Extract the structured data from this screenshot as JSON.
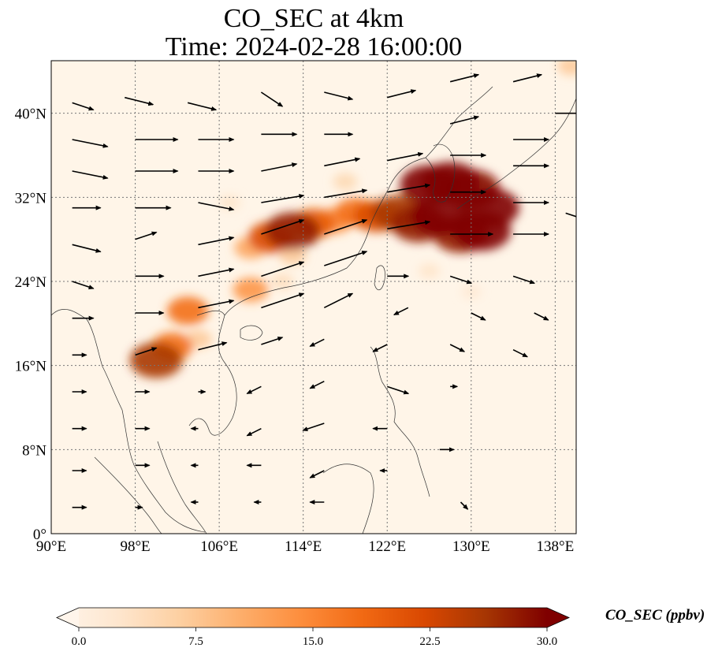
{
  "title_line1": "CO_SEC at 4km",
  "title_line2": "Time: 2024-02-28 16:00:00",
  "map": {
    "lon_range": [
      90,
      140
    ],
    "lat_range": [
      0,
      45
    ],
    "lon_ticks": [
      "90°E",
      "98°E",
      "106°E",
      "114°E",
      "122°E",
      "130°E",
      "138°E"
    ],
    "lat_ticks": [
      "0°",
      "8°N",
      "16°N",
      "24°N",
      "32°N",
      "40°N"
    ],
    "gridlines": true,
    "background_color": "#fff5e8"
  },
  "colorbar": {
    "title": "CO_SEC (ppbv)",
    "ticks": [
      "0.0",
      "7.5",
      "15.0",
      "22.5",
      "30.0"
    ],
    "min": 0,
    "max": 30,
    "extend": "both",
    "colormap": [
      "#fff5eb",
      "#fee6ce",
      "#fdd0a2",
      "#fdae6b",
      "#fd8d3c",
      "#f16913",
      "#d94801",
      "#a63603",
      "#7f0000"
    ]
  },
  "chart_data": {
    "type": "heatmap",
    "variable": "CO_SEC",
    "units": "ppbv",
    "plume_cells": [
      {
        "lon": 126,
        "lat": 33.2,
        "value": 30
      },
      {
        "lon": 128,
        "lat": 33.5,
        "value": 30
      },
      {
        "lon": 130,
        "lat": 32.8,
        "value": 29
      },
      {
        "lon": 131.8,
        "lat": 31,
        "value": 30
      },
      {
        "lon": 131,
        "lat": 28.8,
        "value": 30
      },
      {
        "lon": 129,
        "lat": 28.5,
        "value": 28
      },
      {
        "lon": 127,
        "lat": 30.2,
        "value": 30
      },
      {
        "lon": 125,
        "lat": 29.5,
        "value": 28
      },
      {
        "lon": 123,
        "lat": 30.5,
        "value": 26
      },
      {
        "lon": 121,
        "lat": 30.2,
        "value": 22
      },
      {
        "lon": 119,
        "lat": 30.6,
        "value": 18
      },
      {
        "lon": 117,
        "lat": 29.8,
        "value": 15
      },
      {
        "lon": 115,
        "lat": 29.5,
        "value": 20
      },
      {
        "lon": 113,
        "lat": 28.8,
        "value": 28
      },
      {
        "lon": 111,
        "lat": 28.2,
        "value": 22
      },
      {
        "lon": 109,
        "lat": 27.2,
        "value": 12
      },
      {
        "lon": 113,
        "lat": 26.5,
        "value": 8
      },
      {
        "lon": 118,
        "lat": 33.5,
        "value": 6
      },
      {
        "lon": 109,
        "lat": 23.2,
        "value": 14
      },
      {
        "lon": 103,
        "lat": 21.2,
        "value": 18
      },
      {
        "lon": 101.5,
        "lat": 17.8,
        "value": 18
      },
      {
        "lon": 100,
        "lat": 16.5,
        "value": 26
      },
      {
        "lon": 104,
        "lat": 18.5,
        "value": 8
      },
      {
        "lon": 112,
        "lat": 24,
        "value": 5
      },
      {
        "lon": 126,
        "lat": 25,
        "value": 4
      },
      {
        "lon": 130,
        "lat": 23,
        "value": 3
      },
      {
        "lon": 107,
        "lat": 31.5,
        "value": 4
      },
      {
        "lon": 139.5,
        "lat": 44.5,
        "value": 8
      }
    ],
    "wind_vectors": [
      {
        "lon": 92,
        "lat": 41,
        "u": 3,
        "v": -1
      },
      {
        "lon": 97,
        "lat": 41.5,
        "u": 4,
        "v": -1
      },
      {
        "lon": 103,
        "lat": 41,
        "u": 4,
        "v": -1
      },
      {
        "lon": 110,
        "lat": 42,
        "u": 3,
        "v": -2
      },
      {
        "lon": 116,
        "lat": 42,
        "u": 4,
        "v": -1
      },
      {
        "lon": 122,
        "lat": 41.5,
        "u": 4,
        "v": 1
      },
      {
        "lon": 128,
        "lat": 43,
        "u": 4,
        "v": 1
      },
      {
        "lon": 134,
        "lat": 43,
        "u": 4,
        "v": 1
      },
      {
        "lon": 138,
        "lat": 40,
        "u": 4,
        "v": 0
      },
      {
        "lon": 92,
        "lat": 37.5,
        "u": 5,
        "v": -1
      },
      {
        "lon": 98,
        "lat": 37.5,
        "u": 6,
        "v": 0
      },
      {
        "lon": 104,
        "lat": 37.5,
        "u": 5,
        "v": 0
      },
      {
        "lon": 110,
        "lat": 38,
        "u": 5,
        "v": 0
      },
      {
        "lon": 116,
        "lat": 38,
        "u": 4,
        "v": 0
      },
      {
        "lon": 128,
        "lat": 39,
        "u": 4,
        "v": 1
      },
      {
        "lon": 134,
        "lat": 37.5,
        "u": 5,
        "v": 0
      },
      {
        "lon": 92,
        "lat": 34.5,
        "u": 5,
        "v": -1
      },
      {
        "lon": 98,
        "lat": 34.5,
        "u": 6,
        "v": 0
      },
      {
        "lon": 104,
        "lat": 34.5,
        "u": 5,
        "v": 0
      },
      {
        "lon": 110,
        "lat": 34.5,
        "u": 5,
        "v": 1
      },
      {
        "lon": 116,
        "lat": 35,
        "u": 5,
        "v": 1
      },
      {
        "lon": 122,
        "lat": 35.5,
        "u": 5,
        "v": 1
      },
      {
        "lon": 128,
        "lat": 36,
        "u": 5,
        "v": 0
      },
      {
        "lon": 134,
        "lat": 35,
        "u": 5,
        "v": 0
      },
      {
        "lon": 92,
        "lat": 31,
        "u": 4,
        "v": 0
      },
      {
        "lon": 98,
        "lat": 31,
        "u": 5,
        "v": 0
      },
      {
        "lon": 104,
        "lat": 31.5,
        "u": 5,
        "v": -1
      },
      {
        "lon": 110,
        "lat": 31.5,
        "u": 6,
        "v": 1
      },
      {
        "lon": 116,
        "lat": 32,
        "u": 6,
        "v": 1
      },
      {
        "lon": 122,
        "lat": 32.5,
        "u": 6,
        "v": 1
      },
      {
        "lon": 128,
        "lat": 32.5,
        "u": 5,
        "v": 0
      },
      {
        "lon": 134,
        "lat": 31.5,
        "u": 5,
        "v": 0
      },
      {
        "lon": 139,
        "lat": 30.5,
        "u": 3,
        "v": -1
      },
      {
        "lon": 92,
        "lat": 27.5,
        "u": 4,
        "v": -1
      },
      {
        "lon": 98,
        "lat": 28,
        "u": 3,
        "v": 1
      },
      {
        "lon": 104,
        "lat": 27.5,
        "u": 5,
        "v": 1
      },
      {
        "lon": 110,
        "lat": 28.5,
        "u": 6,
        "v": 2
      },
      {
        "lon": 116,
        "lat": 28.5,
        "u": 6,
        "v": 2
      },
      {
        "lon": 122,
        "lat": 29,
        "u": 6,
        "v": 1
      },
      {
        "lon": 128,
        "lat": 28.5,
        "u": 6,
        "v": 0
      },
      {
        "lon": 134,
        "lat": 28.5,
        "u": 5,
        "v": 0
      },
      {
        "lon": 92,
        "lat": 24,
        "u": 3,
        "v": -1
      },
      {
        "lon": 98,
        "lat": 24.5,
        "u": 4,
        "v": 0
      },
      {
        "lon": 104,
        "lat": 24.5,
        "u": 5,
        "v": 1
      },
      {
        "lon": 110,
        "lat": 24.5,
        "u": 6,
        "v": 2
      },
      {
        "lon": 116,
        "lat": 25.5,
        "u": 6,
        "v": 2
      },
      {
        "lon": 122,
        "lat": 24.5,
        "u": 3,
        "v": 0
      },
      {
        "lon": 128,
        "lat": 24.5,
        "u": 3,
        "v": -1
      },
      {
        "lon": 134,
        "lat": 24.5,
        "u": 3,
        "v": -1
      },
      {
        "lon": 92,
        "lat": 20.5,
        "u": 3,
        "v": 0
      },
      {
        "lon": 98,
        "lat": 21,
        "u": 4,
        "v": 0
      },
      {
        "lon": 104,
        "lat": 21.5,
        "u": 5,
        "v": 1
      },
      {
        "lon": 110,
        "lat": 21.5,
        "u": 6,
        "v": 2
      },
      {
        "lon": 116,
        "lat": 21.5,
        "u": 4,
        "v": 2
      },
      {
        "lon": 124,
        "lat": 21.5,
        "u": -2,
        "v": -1
      },
      {
        "lon": 130,
        "lat": 21,
        "u": 2,
        "v": -1
      },
      {
        "lon": 136,
        "lat": 21,
        "u": 2,
        "v": -1
      },
      {
        "lon": 92,
        "lat": 17,
        "u": 2,
        "v": 0
      },
      {
        "lon": 98,
        "lat": 17,
        "u": 3,
        "v": 1
      },
      {
        "lon": 104,
        "lat": 17.5,
        "u": 4,
        "v": 1
      },
      {
        "lon": 110,
        "lat": 18,
        "u": 3,
        "v": 1
      },
      {
        "lon": 116,
        "lat": 18.5,
        "u": -2,
        "v": -1
      },
      {
        "lon": 122,
        "lat": 18,
        "u": -2,
        "v": -1
      },
      {
        "lon": 128,
        "lat": 18,
        "u": 2,
        "v": -1
      },
      {
        "lon": 134,
        "lat": 17.5,
        "u": 2,
        "v": -1
      },
      {
        "lon": 92,
        "lat": 13.5,
        "u": 2,
        "v": 0
      },
      {
        "lon": 98,
        "lat": 13.5,
        "u": 2,
        "v": 0
      },
      {
        "lon": 104,
        "lat": 13.5,
        "u": 1,
        "v": 0
      },
      {
        "lon": 110,
        "lat": 14,
        "u": -2,
        "v": -1
      },
      {
        "lon": 116,
        "lat": 14.5,
        "u": -2,
        "v": -1
      },
      {
        "lon": 122,
        "lat": 14,
        "u": 3,
        "v": -1
      },
      {
        "lon": 128,
        "lat": 14,
        "u": 1,
        "v": 0
      },
      {
        "lon": 92,
        "lat": 10,
        "u": 2,
        "v": 0
      },
      {
        "lon": 98,
        "lat": 10,
        "u": 2,
        "v": 0
      },
      {
        "lon": 104,
        "lat": 10,
        "u": -1,
        "v": 0
      },
      {
        "lon": 110,
        "lat": 10,
        "u": -2,
        "v": -1
      },
      {
        "lon": 116,
        "lat": 10.5,
        "u": -3,
        "v": -1
      },
      {
        "lon": 122,
        "lat": 10,
        "u": -2,
        "v": 0
      },
      {
        "lon": 127,
        "lat": 8,
        "u": 2,
        "v": 0
      },
      {
        "lon": 92,
        "lat": 6,
        "u": 2,
        "v": 0
      },
      {
        "lon": 98,
        "lat": 6.5,
        "u": 2,
        "v": 0
      },
      {
        "lon": 104,
        "lat": 6.5,
        "u": -1,
        "v": 0
      },
      {
        "lon": 110,
        "lat": 6.5,
        "u": -2,
        "v": 0
      },
      {
        "lon": 116,
        "lat": 6,
        "u": -2,
        "v": -1
      },
      {
        "lon": 122,
        "lat": 6,
        "u": -1,
        "v": 0
      },
      {
        "lon": 92,
        "lat": 2.5,
        "u": 2,
        "v": 0
      },
      {
        "lon": 98,
        "lat": 2.5,
        "u": 1,
        "v": 0
      },
      {
        "lon": 104,
        "lat": 3,
        "u": -1,
        "v": 0
      },
      {
        "lon": 110,
        "lat": 3,
        "u": -1,
        "v": 0
      },
      {
        "lon": 116,
        "lat": 3,
        "u": -2,
        "v": 0
      },
      {
        "lon": 129,
        "lat": 3,
        "u": 1,
        "v": -1
      }
    ]
  }
}
